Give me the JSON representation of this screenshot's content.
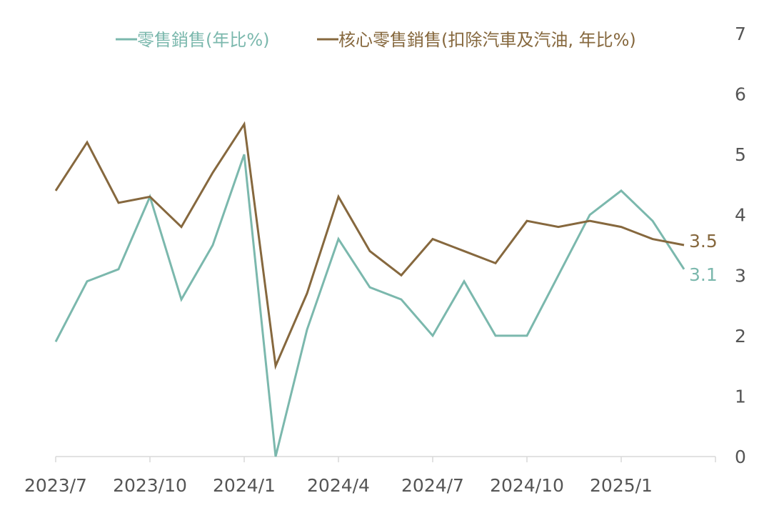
{
  "chart_data": {
    "type": "line",
    "x": [
      "2023/7",
      "2023/8",
      "2023/9",
      "2023/10",
      "2023/11",
      "2023/12",
      "2024/1",
      "2024/2",
      "2024/3",
      "2024/4",
      "2024/5",
      "2024/6",
      "2024/7",
      "2024/8",
      "2024/9",
      "2024/10",
      "2024/11",
      "2024/12",
      "2025/1",
      "2025/2",
      "2025/3"
    ],
    "xticks": [
      "2023/7",
      "2023/10",
      "2024/1",
      "2024/4",
      "2024/7",
      "2024/10",
      "2025/1"
    ],
    "yticks": [
      0,
      1,
      2,
      3,
      4,
      5,
      6,
      7
    ],
    "ylim": [
      0,
      7
    ],
    "y_axis_side": "right",
    "grid": false,
    "legend": "top",
    "series": [
      {
        "name": "零售銷售(年比%)",
        "color": "#7bb8ad",
        "values": [
          1.9,
          2.9,
          3.1,
          4.3,
          2.6,
          3.5,
          5.0,
          0.0,
          2.1,
          3.6,
          2.8,
          2.6,
          2.0,
          2.9,
          2.0,
          2.0,
          3.0,
          4.0,
          4.4,
          3.9,
          3.1
        ],
        "end_label": "3.1"
      },
      {
        "name": "核心零售銷售(扣除汽車及汽油, 年比%)",
        "color": "#86683e",
        "values": [
          4.4,
          5.2,
          4.2,
          4.3,
          3.8,
          4.7,
          5.5,
          1.5,
          2.7,
          4.3,
          3.4,
          3.0,
          3.6,
          3.4,
          3.2,
          3.9,
          3.8,
          3.9,
          3.8,
          3.6,
          3.5
        ],
        "end_label": "3.5"
      }
    ]
  }
}
